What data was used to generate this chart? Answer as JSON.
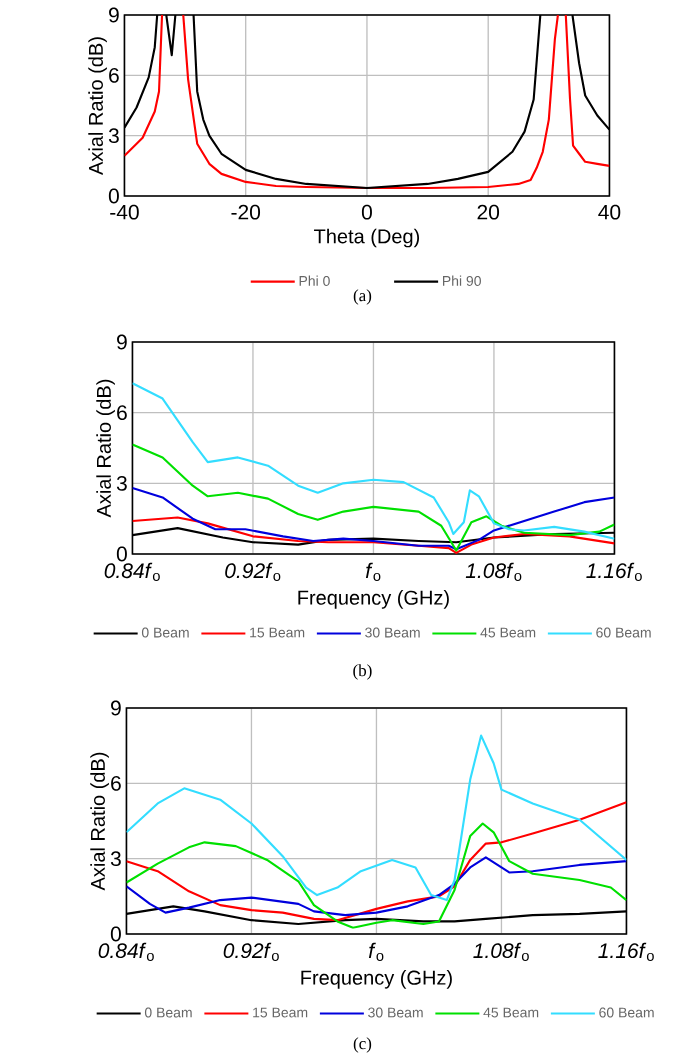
{
  "chart_data": [
    {
      "type": "line",
      "xlabel": "Theta (Deg)",
      "ylabel": "Axial Ratio (dB)",
      "annotations": [
        "(a)"
      ],
      "xlim": [
        -40,
        40
      ],
      "xticks": [
        -40,
        -20,
        0,
        20,
        40
      ],
      "ylim": [
        0,
        9
      ],
      "yticks": [
        0,
        3,
        6,
        9
      ],
      "grid": true,
      "legend": "bottom",
      "series": [
        {
          "name": "Phi 0",
          "color": "#ff0000",
          "x": [
            -40,
            -37,
            -35,
            -34.3,
            -33.8,
            -32,
            -30.3,
            -29.5,
            -28,
            -26,
            -24,
            -20,
            -15,
            -10,
            0,
            10,
            20,
            25,
            27,
            28,
            29,
            30,
            31,
            31.5,
            32,
            32.8,
            33.5,
            34,
            35,
            36,
            38,
            40
          ],
          "values": [
            2.0,
            2.9,
            4.2,
            5.2,
            9,
            null,
            9,
            5.8,
            2.6,
            1.6,
            1.1,
            0.7,
            0.5,
            0.45,
            0.4,
            0.4,
            0.45,
            0.6,
            0.8,
            1.4,
            2.2,
            3.8,
            7.8,
            9,
            null,
            9,
            4.8,
            2.5,
            2.1,
            1.7,
            1.6,
            1.5
          ]
        },
        {
          "name": "Phi 90",
          "color": "#000000",
          "x": [
            -40,
            -38,
            -36,
            -35,
            -34.6,
            -34,
            -33.1,
            -32.2,
            -31.6,
            -30,
            -28.6,
            -28,
            -27,
            -26,
            -24,
            -20,
            -15,
            -10,
            0,
            10,
            15,
            20,
            24,
            26,
            27.5,
            28.6,
            31,
            33.9,
            35,
            36,
            38,
            40
          ],
          "values": [
            3.4,
            4.4,
            5.9,
            7.4,
            9,
            null,
            9,
            7.0,
            9,
            null,
            9,
            5.2,
            3.8,
            3.0,
            2.1,
            1.3,
            0.85,
            0.6,
            0.4,
            0.6,
            0.85,
            1.2,
            2.2,
            3.2,
            4.8,
            9,
            null,
            9,
            6.6,
            5.0,
            4.0,
            3.3
          ]
        }
      ]
    },
    {
      "type": "line",
      "xlabel": "Frequency (GHz)",
      "ylabel": "Axial Ratio (dB)",
      "annotations": [
        "(b)"
      ],
      "xlim": [
        0.84,
        1.16
      ],
      "xticks": [
        {
          "value": 0.84,
          "label": "*0.84f*$_{o}$"
        },
        {
          "value": 0.92,
          "label": "*0.92f*$_{o}$"
        },
        {
          "value": 1.0,
          "label": "*f*$_{o}$"
        },
        {
          "value": 1.08,
          "label": "*1.08f*$_{o}$"
        },
        {
          "value": 1.16,
          "label": "*1.16f*$_{o}$"
        }
      ],
      "ylim": [
        0,
        9
      ],
      "yticks": [
        0,
        3,
        6,
        9
      ],
      "grid": true,
      "legend": "bottom",
      "series": [
        {
          "name": "0 Beam",
          "color": "#000000",
          "x": [
            0.84,
            0.87,
            0.9,
            0.92,
            0.95,
            0.97,
            1.0,
            1.03,
            1.055,
            1.08,
            1.12,
            1.16
          ],
          "values": [
            0.8,
            1.1,
            0.7,
            0.5,
            0.4,
            0.6,
            0.65,
            0.55,
            0.5,
            0.7,
            0.85,
            0.9
          ]
        },
        {
          "name": "15 Beam",
          "color": "#ff0000",
          "x": [
            0.84,
            0.87,
            0.89,
            0.92,
            0.95,
            0.97,
            1.0,
            1.03,
            1.05,
            1.055,
            1.065,
            1.08,
            1.1,
            1.13,
            1.16
          ],
          "values": [
            1.4,
            1.55,
            1.3,
            0.75,
            0.55,
            0.5,
            0.5,
            0.35,
            0.25,
            0.05,
            0.4,
            0.7,
            0.85,
            0.75,
            0.45
          ]
        },
        {
          "name": "30 Beam",
          "color": "#0000dd",
          "x": [
            0.84,
            0.86,
            0.88,
            0.895,
            0.915,
            0.94,
            0.96,
            0.98,
            1.0,
            1.03,
            1.05,
            1.055,
            1.07,
            1.08,
            1.12,
            1.14,
            1.16
          ],
          "values": [
            2.8,
            2.4,
            1.5,
            1.05,
            1.05,
            0.75,
            0.55,
            0.65,
            0.55,
            0.35,
            0.35,
            0.2,
            0.6,
            1.0,
            1.8,
            2.2,
            2.4
          ]
        },
        {
          "name": "45 Beam",
          "color": "#00e000",
          "x": [
            0.84,
            0.86,
            0.88,
            0.89,
            0.91,
            0.93,
            0.95,
            0.963,
            0.98,
            1.0,
            1.03,
            1.045,
            1.055,
            1.065,
            1.075,
            1.085,
            1.1,
            1.13,
            1.15,
            1.16
          ],
          "values": [
            4.65,
            4.1,
            2.9,
            2.45,
            2.6,
            2.35,
            1.7,
            1.45,
            1.8,
            2.0,
            1.8,
            1.2,
            0.15,
            1.35,
            1.6,
            1.2,
            0.9,
            0.8,
            0.95,
            1.25
          ]
        },
        {
          "name": "60 Beam",
          "color": "#33ddff",
          "x": [
            0.84,
            0.86,
            0.88,
            0.89,
            0.91,
            0.93,
            0.95,
            0.963,
            0.98,
            1.0,
            1.02,
            1.04,
            1.05,
            1.053,
            1.06,
            1.064,
            1.07,
            1.08,
            1.09,
            1.1,
            1.12,
            1.14,
            1.16
          ],
          "values": [
            7.25,
            6.6,
            4.75,
            3.9,
            4.1,
            3.75,
            2.9,
            2.6,
            3.0,
            3.15,
            3.05,
            2.4,
            1.35,
            0.85,
            1.35,
            2.7,
            2.45,
            1.3,
            1.05,
            1.0,
            1.15,
            0.95,
            0.65
          ]
        }
      ]
    },
    {
      "type": "line",
      "xlabel": "Frequency (GHz)",
      "ylabel": "Axial Ratio (dB)",
      "annotations": [
        "(c)"
      ],
      "xlim": [
        0.84,
        1.16
      ],
      "xticks": [
        {
          "value": 0.84,
          "label": "*0.84f*$_{o}$"
        },
        {
          "value": 0.92,
          "label": "*0.92f*$_{o}$"
        },
        {
          "value": 1.0,
          "label": "*f*$_{o}$"
        },
        {
          "value": 1.08,
          "label": "*1.08f*$_{o}$"
        },
        {
          "value": 1.16,
          "label": "*1.16f*$_{o}$"
        }
      ],
      "ylim": [
        0,
        9
      ],
      "yticks": [
        0,
        3,
        6,
        9
      ],
      "grid": true,
      "legend": "bottom",
      "series": [
        {
          "name": "0 Beam",
          "color": "#000000",
          "x": [
            0.84,
            0.87,
            0.89,
            0.92,
            0.95,
            0.98,
            1.0,
            1.03,
            1.05,
            1.07,
            1.1,
            1.13,
            1.16
          ],
          "values": [
            0.8,
            1.1,
            0.9,
            0.55,
            0.4,
            0.55,
            0.6,
            0.5,
            0.5,
            0.6,
            0.75,
            0.8,
            0.9
          ]
        },
        {
          "name": "15 Beam",
          "color": "#ff0000",
          "x": [
            0.84,
            0.86,
            0.88,
            0.9,
            0.92,
            0.94,
            0.96,
            0.975,
            1.0,
            1.02,
            1.04,
            1.05,
            1.06,
            1.07,
            1.08,
            1.1,
            1.13,
            1.16
          ],
          "values": [
            2.9,
            2.5,
            1.7,
            1.15,
            0.95,
            0.85,
            0.6,
            0.55,
            1.0,
            1.3,
            1.5,
            1.9,
            2.95,
            3.6,
            3.65,
            4.0,
            4.55,
            5.25
          ]
        },
        {
          "name": "30 Beam",
          "color": "#0000dd",
          "x": [
            0.84,
            0.855,
            0.865,
            0.88,
            0.9,
            0.92,
            0.95,
            0.96,
            0.98,
            1.0,
            1.02,
            1.04,
            1.05,
            1.06,
            1.07,
            1.08,
            1.085,
            1.1,
            1.13,
            1.16
          ],
          "values": [
            1.9,
            1.2,
            0.85,
            1.05,
            1.35,
            1.45,
            1.2,
            0.9,
            0.75,
            0.85,
            1.1,
            1.55,
            2.0,
            2.65,
            3.05,
            2.65,
            2.45,
            2.5,
            2.75,
            2.9
          ]
        },
        {
          "name": "45 Beam",
          "color": "#00e000",
          "x": [
            0.84,
            0.86,
            0.88,
            0.89,
            0.91,
            0.93,
            0.95,
            0.96,
            0.975,
            0.985,
            1.0,
            1.01,
            1.03,
            1.04,
            1.05,
            1.06,
            1.068,
            1.075,
            1.085,
            1.1,
            1.13,
            1.15,
            1.16
          ],
          "values": [
            2.05,
            2.8,
            3.45,
            3.65,
            3.5,
            2.95,
            2.1,
            1.15,
            0.5,
            0.25,
            0.45,
            0.55,
            0.4,
            0.5,
            1.75,
            3.9,
            4.4,
            4.05,
            2.9,
            2.4,
            2.15,
            1.85,
            1.35
          ]
        },
        {
          "name": "60 Beam",
          "color": "#33ddff",
          "x": [
            0.84,
            0.86,
            0.877,
            0.9,
            0.92,
            0.94,
            0.955,
            0.962,
            0.975,
            0.99,
            1.01,
            1.025,
            1.035,
            1.045,
            1.05,
            1.06,
            1.067,
            1.075,
            1.08,
            1.1,
            1.13,
            1.16
          ],
          "values": [
            4.05,
            5.2,
            5.8,
            5.35,
            4.4,
            3.1,
            1.85,
            1.55,
            1.85,
            2.5,
            2.95,
            2.65,
            1.55,
            1.35,
            2.15,
            6.15,
            7.9,
            6.8,
            5.75,
            5.2,
            4.55,
            2.95
          ]
        }
      ]
    }
  ]
}
